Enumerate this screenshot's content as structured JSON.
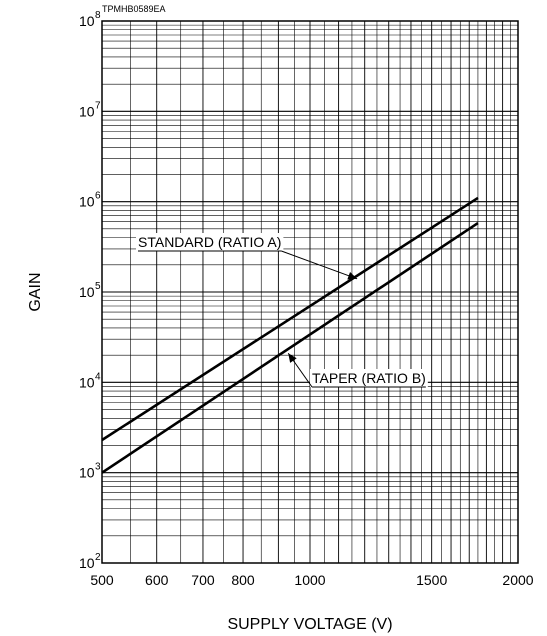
{
  "chart_data": {
    "type": "line",
    "code": "TPMHB0589EA",
    "xlabel": "SUPPLY VOLTAGE (V)",
    "ylabel": "GAIN",
    "x_scale": "log",
    "y_scale": "log",
    "xlim": [
      500,
      2000
    ],
    "ylim": [
      100,
      100000000
    ],
    "grid": true,
    "x_ticks": [
      {
        "value": 500,
        "label": "500"
      },
      {
        "value": 600,
        "label": "600"
      },
      {
        "value": 700,
        "label": "700"
      },
      {
        "value": 800,
        "label": "800"
      },
      {
        "value": 1000,
        "label": "1000"
      },
      {
        "value": 1500,
        "label": "1500"
      },
      {
        "value": 2000,
        "label": "2000"
      }
    ],
    "y_ticks": [
      {
        "value": 100,
        "base": "10",
        "exp": "2"
      },
      {
        "value": 1000,
        "base": "10",
        "exp": "3"
      },
      {
        "value": 10000,
        "base": "10",
        "exp": "4"
      },
      {
        "value": 100000,
        "base": "10",
        "exp": "5"
      },
      {
        "value": 1000000,
        "base": "10",
        "exp": "6"
      },
      {
        "value": 10000000,
        "base": "10",
        "exp": "7"
      },
      {
        "value": 100000000,
        "base": "10",
        "exp": "8"
      }
    ],
    "series": [
      {
        "name": "STANDARD (RATIO A)",
        "x": [
          500,
          1750
        ],
        "y": [
          2300,
          1100000
        ]
      },
      {
        "name": "TAPER (RATIO B)",
        "x": [
          500,
          1750
        ],
        "y": [
          1000,
          580000
        ]
      }
    ],
    "annotations": [
      {
        "series": 0,
        "text": "STANDARD (RATIO A)",
        "point": {
          "x": 1170,
          "y": 140000
        }
      },
      {
        "series": 1,
        "text": "TAPER (RATIO B)",
        "point": {
          "x": 930,
          "y": 21000
        }
      }
    ]
  }
}
